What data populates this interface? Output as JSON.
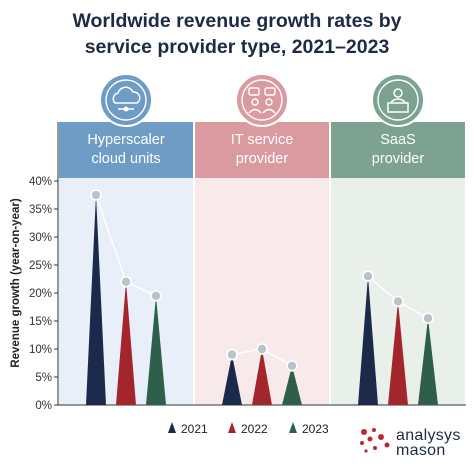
{
  "chart_data": {
    "type": "bar",
    "title_lines": [
      "Worldwide revenue growth rates by",
      "service provider type, 2021–2023"
    ],
    "ylabel": "Revenue growth (year-on-year)",
    "ylim": [
      0,
      40
    ],
    "yticks": [
      0,
      5,
      10,
      15,
      20,
      25,
      30,
      35,
      40
    ],
    "ytick_labels": [
      "0%",
      "5%",
      "10%",
      "15%",
      "20%",
      "25%",
      "30%",
      "35%",
      "40%"
    ],
    "grid": false,
    "legend_position": "bottom-center",
    "categories": [
      {
        "label_lines": [
          "Hyperscaler",
          "cloud units"
        ],
        "icon": "cloud-network-icon"
      },
      {
        "label_lines": [
          "IT service",
          "provider"
        ],
        "icon": "people-chat-icon"
      },
      {
        "label_lines": [
          "SaaS",
          "provider"
        ],
        "icon": "person-desk-icon"
      }
    ],
    "series": [
      {
        "name": "2021",
        "color": "#1b2a4a",
        "values": [
          37.5,
          9,
          23
        ]
      },
      {
        "name": "2022",
        "color": "#a3262c",
        "values": [
          22,
          10,
          18.5
        ]
      },
      {
        "name": "2023",
        "color": "#2e5f4b",
        "values": [
          19.5,
          7,
          15.5
        ]
      }
    ],
    "panel_colors": {
      "header": [
        "#6f9cc4",
        "#d99aa0",
        "#7da291"
      ],
      "body": [
        "#e8eff8",
        "#f8e9ea",
        "#e9f0ea"
      ]
    }
  },
  "brand": {
    "logo_lines": [
      "analysys",
      "mason"
    ],
    "logo_color": "#c0272d"
  }
}
